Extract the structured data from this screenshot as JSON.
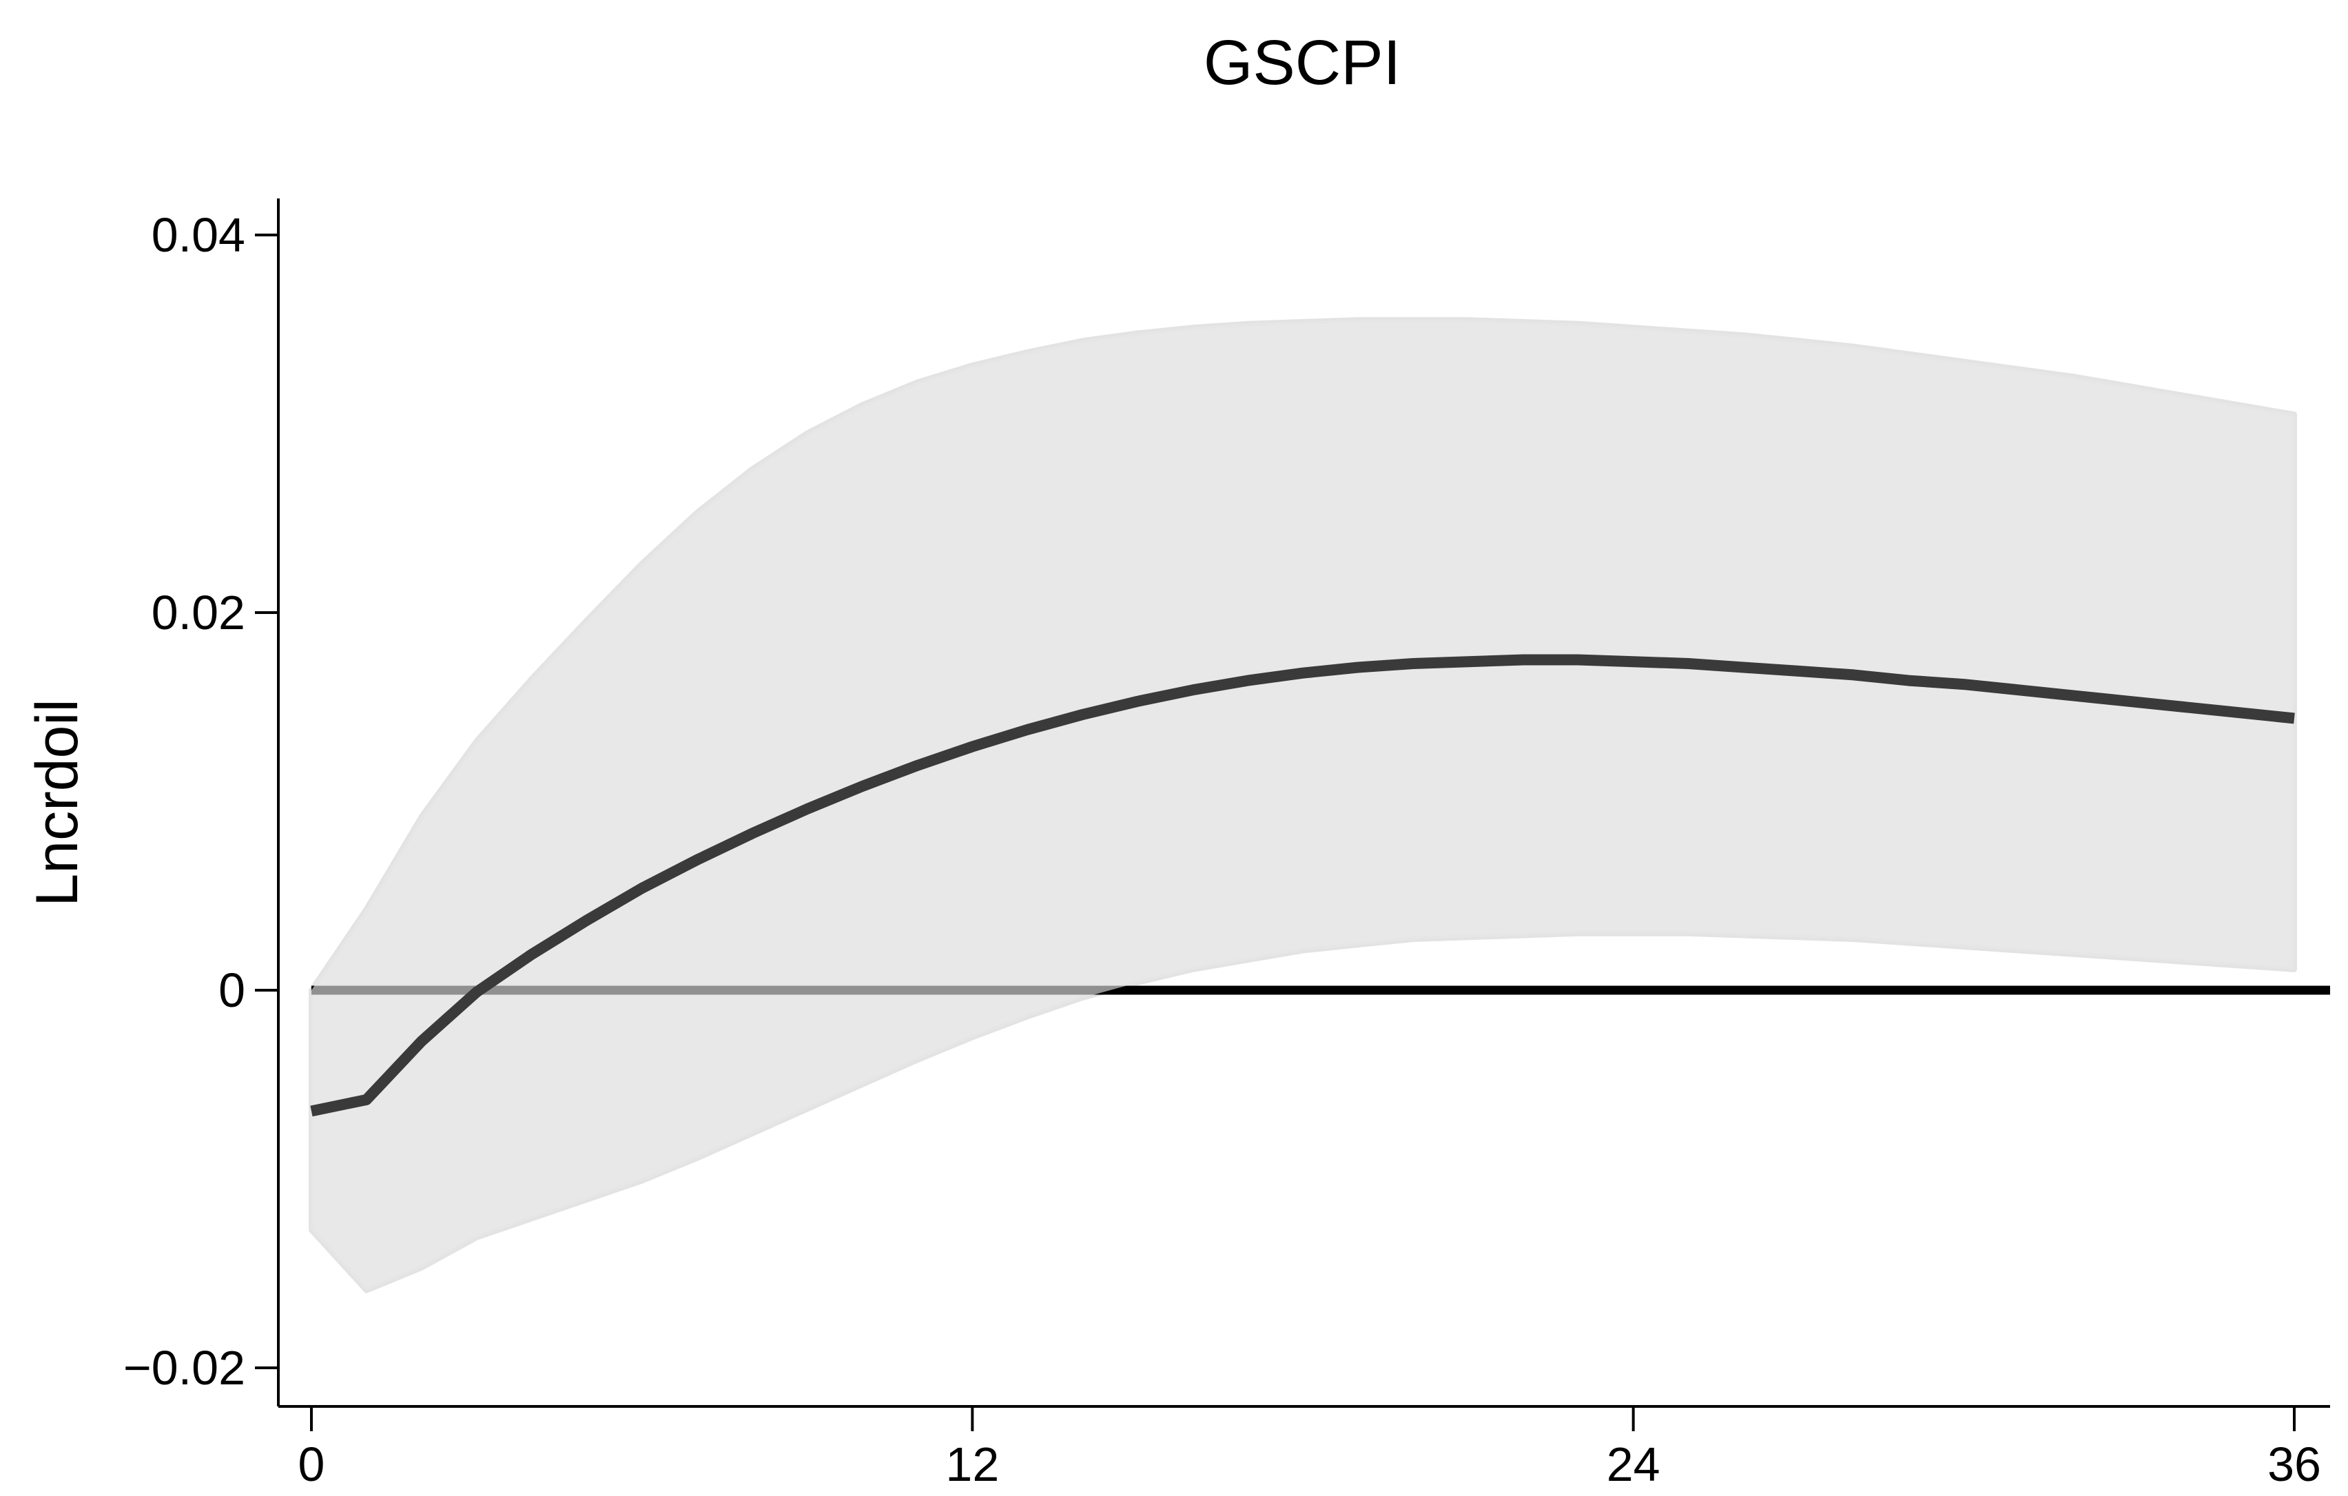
{
  "chart_data": {
    "type": "line",
    "title": "GSCPI",
    "xlabel": "",
    "ylabel": "Lncrdoil",
    "xlim": [
      0,
      36
    ],
    "ylim": [
      -0.02,
      0.04
    ],
    "x_ticks": [
      0,
      12,
      24,
      36
    ],
    "x_tick_labels": [
      "0",
      "12",
      "24",
      "36"
    ],
    "y_ticks": [
      -0.02,
      0,
      0.02,
      0.04
    ],
    "y_tick_labels": [
      "−0.02",
      "0",
      "0.02",
      "0.04"
    ],
    "grid": false,
    "legend": "none",
    "zero_line": 0,
    "colors": {
      "band": "#e8e8e8",
      "band_edge": "#e3e3e3",
      "line": "#3a3a3a",
      "zero_line": "#000000",
      "axis": "#000000"
    },
    "x": [
      0,
      1,
      2,
      3,
      4,
      5,
      6,
      7,
      8,
      9,
      10,
      11,
      12,
      13,
      14,
      15,
      16,
      17,
      18,
      19,
      20,
      21,
      22,
      23,
      24,
      25,
      26,
      27,
      28,
      29,
      30,
      31,
      32,
      33,
      34,
      35,
      36
    ],
    "series": [
      {
        "role": "response",
        "values": [
          -0.0064,
          -0.0058,
          -0.0027,
          -0.0001,
          0.0019,
          0.0037,
          0.0054,
          0.0069,
          0.0083,
          0.0096,
          0.0108,
          0.0119,
          0.0129,
          0.0138,
          0.0146,
          0.0153,
          0.0159,
          0.0164,
          0.0168,
          0.0171,
          0.0173,
          0.0174,
          0.0175,
          0.0175,
          0.0174,
          0.0173,
          0.0171,
          0.0169,
          0.0167,
          0.0164,
          0.0162,
          0.0159,
          0.0156,
          0.0153,
          0.015,
          0.0147,
          0.0144
        ]
      },
      {
        "role": "upper-bound",
        "values": [
          0.0,
          0.0043,
          0.0092,
          0.0132,
          0.0165,
          0.0196,
          0.0226,
          0.0253,
          0.0276,
          0.0295,
          0.031,
          0.0322,
          0.0331,
          0.0338,
          0.0344,
          0.0348,
          0.0351,
          0.0353,
          0.0354,
          0.0355,
          0.0355,
          0.0355,
          0.0354,
          0.0353,
          0.0351,
          0.0349,
          0.0347,
          0.0344,
          0.0341,
          0.0337,
          0.0333,
          0.0329,
          0.0325,
          0.032,
          0.0315,
          0.031,
          0.0305
        ]
      },
      {
        "role": "lower-bound",
        "values": [
          -0.0127,
          -0.0159,
          -0.0147,
          -0.0131,
          -0.0121,
          -0.0111,
          -0.0101,
          -0.0089,
          -0.0076,
          -0.0063,
          -0.005,
          -0.0037,
          -0.0025,
          -0.0014,
          -0.0004,
          0.0004,
          0.0011,
          0.0016,
          0.0021,
          0.0024,
          0.0027,
          0.0028,
          0.0029,
          0.003,
          0.003,
          0.003,
          0.0029,
          0.0028,
          0.0027,
          0.0025,
          0.0023,
          0.0021,
          0.0019,
          0.0017,
          0.0015,
          0.0013,
          0.0011
        ]
      }
    ]
  }
}
